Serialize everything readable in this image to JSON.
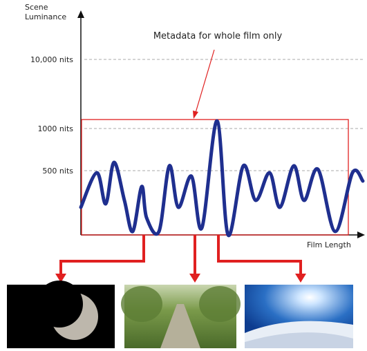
{
  "y_axis_label": [
    "Scene",
    "Luminance"
  ],
  "x_axis_label": "Film Length",
  "annotation": "Metadata for whole film only",
  "levels": [
    "10,000 nits",
    "1000 nits",
    "500 nits"
  ]
}
